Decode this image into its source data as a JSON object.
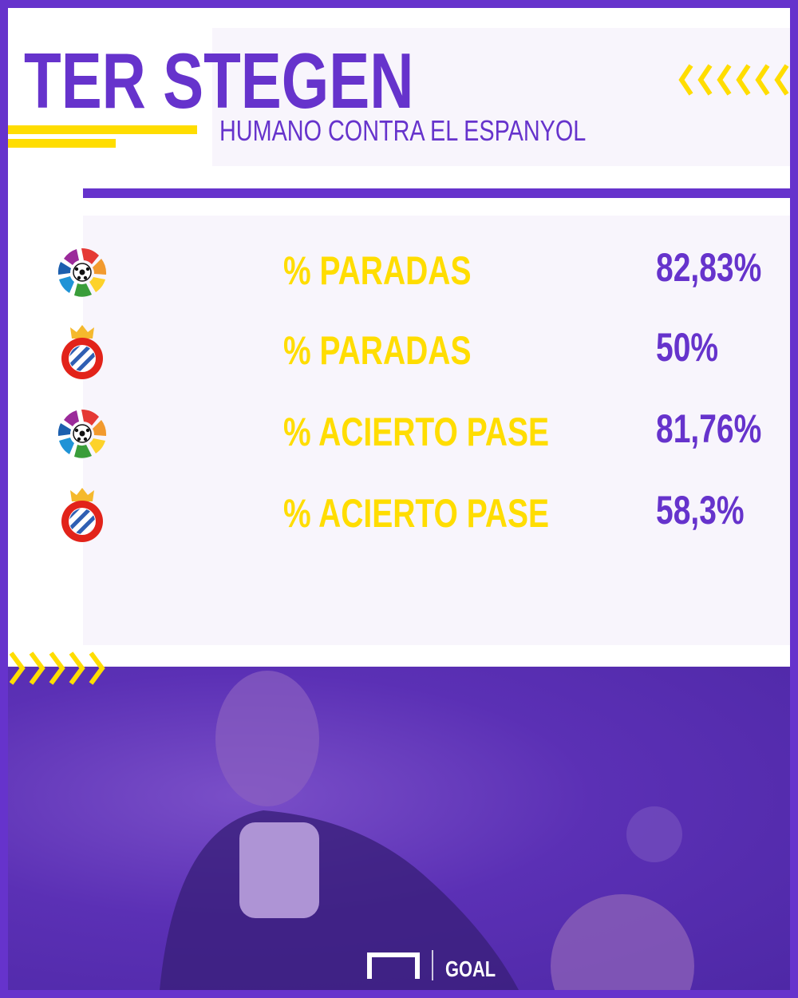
{
  "header": {
    "title": "TER STEGEN",
    "subtitle": "HUMANO CONTRA EL ESPANYOL"
  },
  "stats": [
    {
      "icon": "laliga-logo-icon",
      "label": "% PARADAS",
      "value": "82,83%"
    },
    {
      "icon": "espanyol-crest-icon",
      "label": "% PARADAS",
      "value": "50%"
    },
    {
      "icon": "laliga-logo-icon",
      "label": "% ACIERTO PASE",
      "value": "81,76%"
    },
    {
      "icon": "espanyol-crest-icon",
      "label": "% ACIERTO PASE",
      "value": "58,3%"
    }
  ],
  "footer": {
    "brand": "GOAL"
  },
  "colors": {
    "purple": "#6633cc",
    "yellow": "#ffdd00",
    "panel": "#f8f5fc"
  }
}
